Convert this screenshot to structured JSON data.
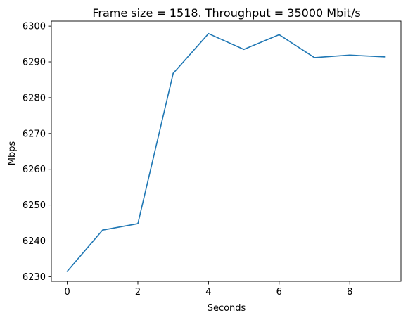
{
  "chart_data": {
    "type": "line",
    "title": "Frame size = 1518. Throughput = 35000 Mbit/s",
    "xlabel": "Seconds",
    "ylabel": "Mbps",
    "xlim": [
      -0.45,
      9.45
    ],
    "ylim": [
      6228.7,
      6301.4
    ],
    "xticks": [
      0,
      2,
      4,
      6,
      8
    ],
    "yticks": [
      6230,
      6240,
      6250,
      6260,
      6270,
      6280,
      6290,
      6300
    ],
    "grid": false,
    "series": [
      {
        "color": "#1f77b4",
        "x": [
          0,
          1,
          2,
          3,
          4,
          5,
          6,
          7,
          8,
          9
        ],
        "values": [
          6231.5,
          6243.0,
          6244.8,
          6286.8,
          6297.9,
          6293.5,
          6297.6,
          6291.2,
          6291.9,
          6291.4
        ]
      }
    ]
  }
}
